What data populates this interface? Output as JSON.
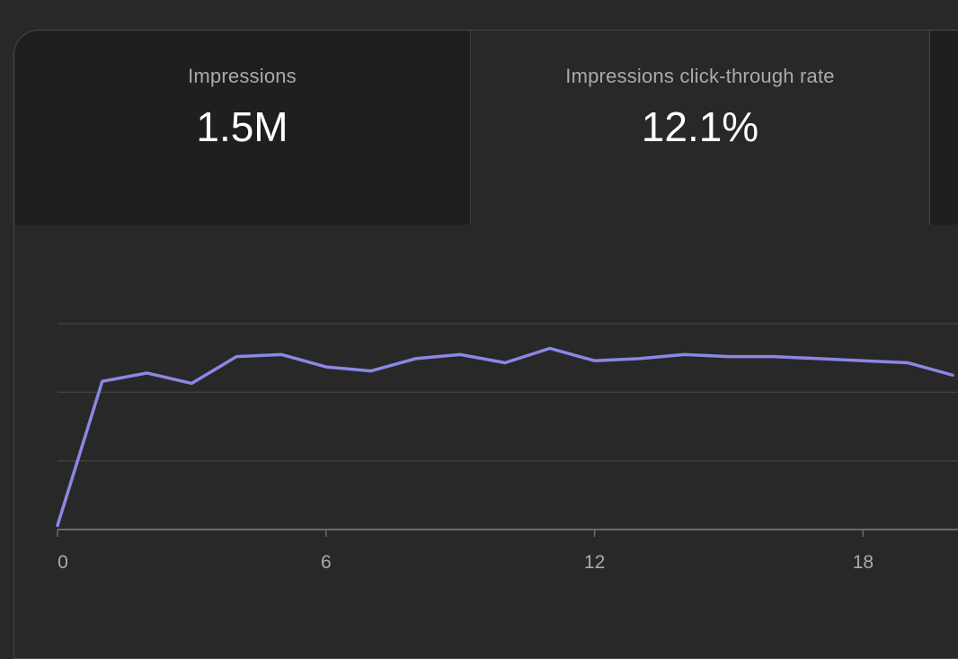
{
  "metrics": [
    {
      "label": "Impressions",
      "value": "1.5M"
    },
    {
      "label": "Impressions click-through rate",
      "value": "12.1%"
    }
  ],
  "colors": {
    "line": "#8b87e6",
    "grid": "#3f3f3f",
    "axis": "#6a6a6a",
    "tick_text": "#aaaaaa"
  },
  "chart_data": {
    "type": "line",
    "title": "",
    "xlabel": "",
    "ylabel": "",
    "x": [
      0,
      1,
      2,
      3,
      4,
      5,
      6,
      7,
      8,
      9,
      10,
      11,
      12,
      13,
      14,
      15,
      16,
      17,
      18,
      19,
      20
    ],
    "xticks": [
      0,
      6,
      12,
      18
    ],
    "grid": true,
    "series": [
      {
        "values": [
          0.02,
          0.72,
          0.76,
          0.71,
          0.84,
          0.85,
          0.79,
          0.77,
          0.83,
          0.85,
          0.81,
          0.88,
          0.82,
          0.83,
          0.85,
          0.84,
          0.84,
          0.83,
          0.82,
          0.81,
          0.75
        ]
      }
    ],
    "ylim": [
      0,
      1
    ]
  }
}
